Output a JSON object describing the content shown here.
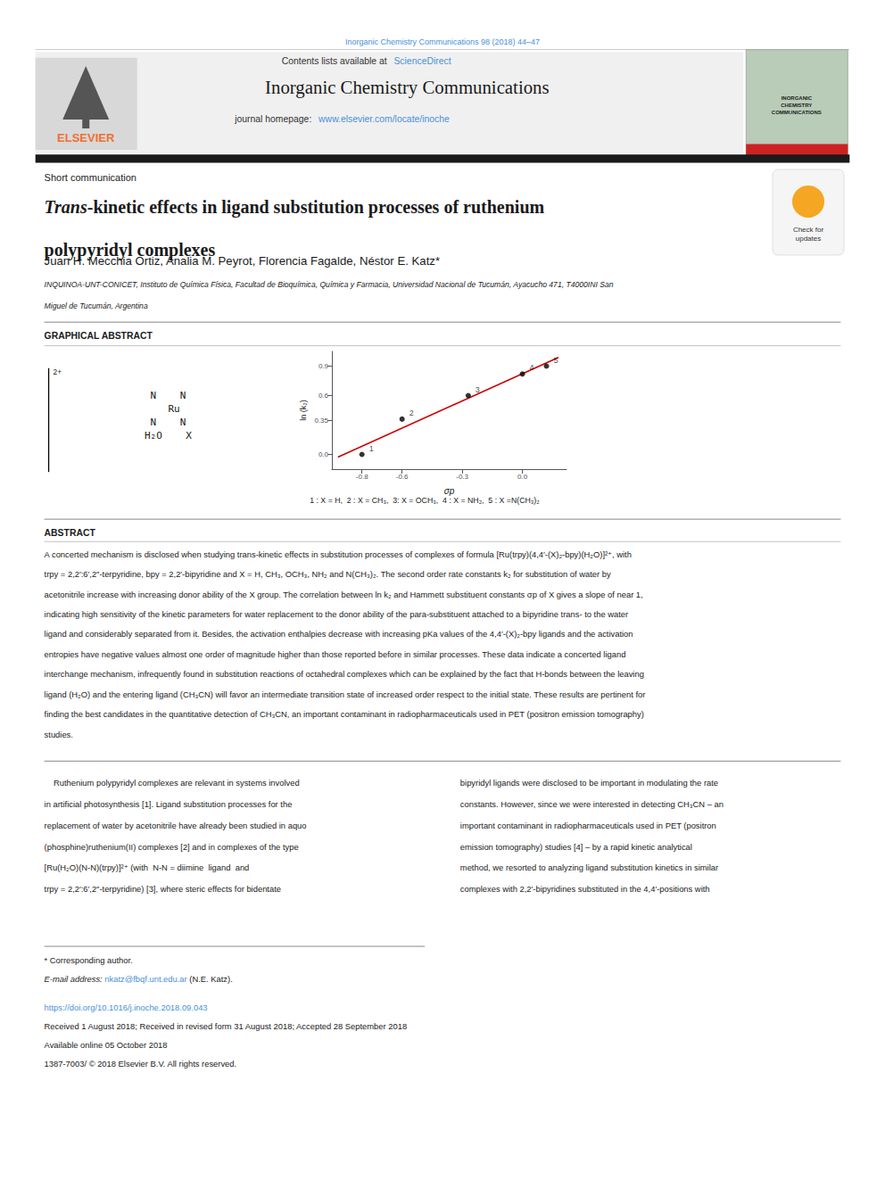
{
  "chart_data": {
    "type": "scatter",
    "xlabel": "σp",
    "ylabel": "ln (k₂)",
    "caption": "1 : X = H,  2 : X = CH₃,  3: X = OCH₃,  4 : X = NH₂,  5 : X =N(CH₃)₂",
    "xlim": [
      -0.95,
      0.22
    ],
    "xticks": [
      -0.8,
      -0.6,
      -0.3,
      {
        "value": 0,
        "label": "0.0"
      }
    ],
    "ylim": [
      -0.15,
      1.05
    ],
    "yticks": [
      {
        "value": 0,
        "label": "0.0"
      },
      0.35,
      0.6,
      0.9
    ],
    "grid": false,
    "series": [
      {
        "type": "line",
        "color": "#cc0000",
        "x": [
          -0.92,
          0.18
        ],
        "values": [
          -0.02776,
          0.98885
        ]
      },
      {
        "type": "scatter",
        "color": "#000000",
        "x": [
          -0.8,
          -0.6,
          -0.27,
          0.0,
          0.12
        ],
        "values": [
          0.0,
          0.36,
          0.6,
          0.82,
          0.9
        ],
        "point_labels": [
          "1",
          "2",
          "3",
          "4",
          "5"
        ]
      }
    ]
  },
  "page": {
    "link_color": "#4a90d9",
    "accent_color": "#f07030",
    "top_journal_ref": "Inorganic Chemistry Communications 98 (2018) 44–47",
    "header_text": "Contents lists available at",
    "header_sciencedirect": "ScienceDirect",
    "journal_title": "Inorganic Chemistry Communications",
    "journal_homepage_text": "journal homepage:",
    "journal_url": "www.elsevier.com/locate/inoche",
    "logo_text": "ELSEVIER",
    "cover_text": "INORGANIC\nCHEMISTRY\nCOMMUNICATIONS",
    "badge_text": "Check for\nupdates",
    "section_short_communication": "Short communication",
    "article_title_italic": "Trans",
    "article_title_rest": "-kinetic effects in ligand substitution processes of ruthenium",
    "article_title_line2": "polypyridyl complexes",
    "authors": "Juan H. Mecchia Ortiz, Analia M. Peyrot, Florencia Fagalde, Néstor E. Katz*",
    "affiliation_lines": [
      "INQUINOA-UNT-CONICET, Instituto de Química Física, Facultad de Bioquímica, Química y Farmacia, Universidad Nacional de Tucumán, Ayacucho 471, T4000INI San",
      "Miguel de Tucumán, Argentina"
    ],
    "graphical_abstract_label": "GRAPHICAL ABSTRACT",
    "structure_charge": "2+",
    "structure_text": "N    N\n  Ru\nN    N\nH₂O    X",
    "abstract_label": "ABSTRACT",
    "abstract_text_lines": [
      "A concerted mechanism is disclosed when studying trans-kinetic effects in substitution processes of complexes of formula [Ru(trpy)(4,4′-(X)₂-bpy)(H₂O)]²⁺, with",
      "trpy = 2,2′:6′,2″-terpyridine, bpy = 2,2′-bipyridine and X = H, CH₃, OCH₃, NH₂ and N(CH₃)₂. The second order rate constants k₂ for substitution of water by",
      "acetonitrile increase with increasing donor ability of the X group. The correlation between ln k₂ and Hammett substituent constants σp of X gives a slope of near 1,",
      "indicating high sensitivity of the kinetic parameters for water replacement to the donor ability of the para-substituent attached to a bipyridine trans- to the water",
      "ligand and considerably separated from it. Besides, the activation enthalpies decrease with increasing pKa values of the 4,4′-(X)₂-bpy ligands and the activation",
      "entropies have negative values almost one order of magnitude higher than those reported before in similar processes. These data indicate a concerted ligand",
      "interchange mechanism, infrequently found in substitution reactions of octahedral complexes which can be explained by the fact that H-bonds between the leaving",
      "ligand (H₂O) and the entering ligand (CH₃CN) will favor an intermediate transition state of increased order respect to the initial state. These results are pertinent for",
      "finding the best candidates in the quantitative detection of CH₃CN, an important contaminant in radiopharmaceuticals used in PET (positron emission tomography)",
      "studies."
    ],
    "body_left_lines": [
      "    Ruthenium polypyridyl complexes are relevant in systems involved",
      "in artificial photosynthesis [1]. Ligand substitution processes for the",
      "replacement of water by acetonitrile have already been studied in aquo",
      "(phosphine)ruthenium(II) complexes [2] and in complexes of the type",
      "[Ru(H₂O)(N-N)(trpy)]²⁺ (with  N-N = diimine  ligand  and",
      "trpy = 2,2′:6′,2″-terpyridine) [3], where steric effects for bidentate"
    ],
    "body_right_lines": [
      "bipyridyl ligands were disclosed to be important in modulating the rate",
      "constants. However, since we were interested in detecting CH₃CN – an",
      "important contaminant in radiopharmaceuticals used in PET (positron",
      "emission tomography) studies [4] – by a rapid kinetic analytical",
      "method, we resorted to analyzing ligand substitution kinetics in similar",
      "complexes with 2,2′-bipyridines substituted in the 4,4′-positions with"
    ],
    "footnote_star": "* Corresponding author.",
    "footnote_email_label": "E-mail address:",
    "footnote_email": "nkatz@fbqf.unt.edu.ar",
    "footnote_email_rest": " (N.E. Katz).",
    "doi_text": "https://doi.org/10.1016/j.inoche.2018.09.043",
    "received_text": "Received 1 August 2018; Received in revised form 31 August 2018; Accepted 28 September 2018",
    "available_text": "Available online 05 October 2018",
    "rights_text": "1387-7003/ © 2018 Elsevier B.V. All rights reserved."
  }
}
